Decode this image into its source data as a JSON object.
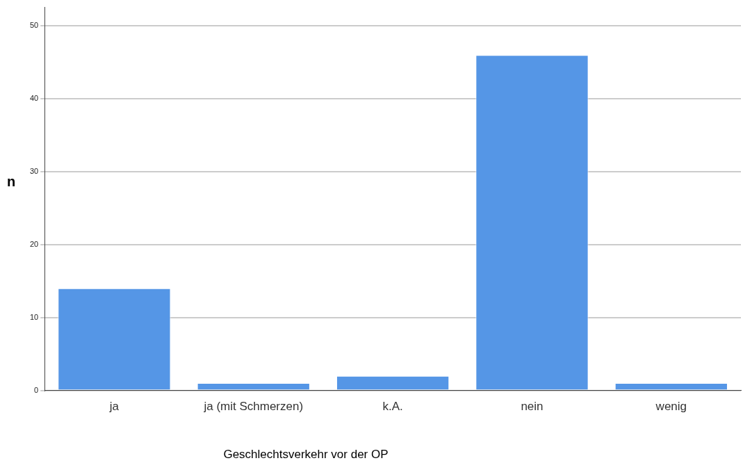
{
  "chart_data": {
    "type": "bar",
    "xlabel": "Geschlechtsverkehr vor der OP",
    "ylabel": "n",
    "categories": [
      "ja",
      "ja (mit Schmerzen)",
      "k.A.",
      "nein",
      "wenig"
    ],
    "values": [
      14,
      1,
      2,
      46,
      1
    ],
    "color": "#5596e6",
    "ylim": [
      0,
      52.6
    ],
    "yticks": [
      0,
      10,
      20,
      30,
      40,
      50
    ],
    "grid": "y",
    "legend": false
  }
}
